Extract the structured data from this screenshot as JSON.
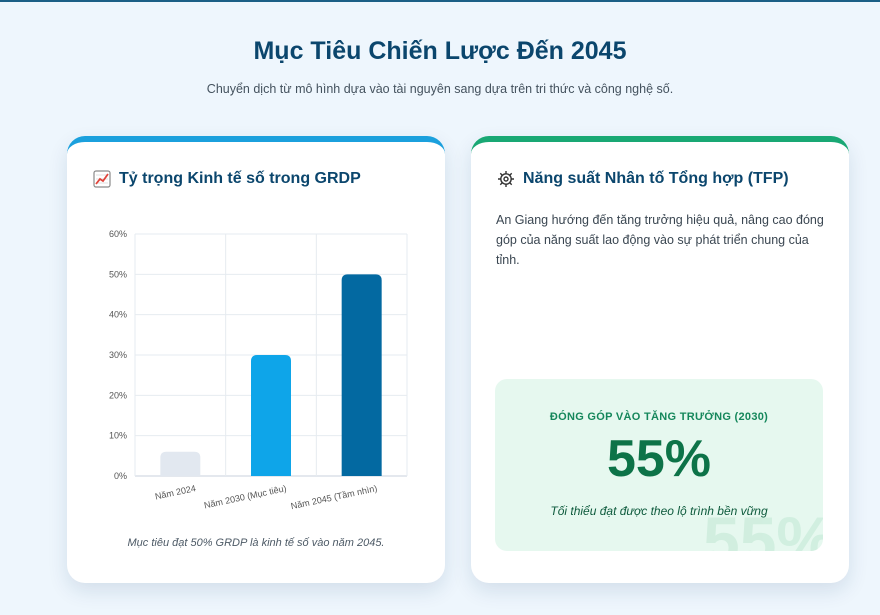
{
  "header": {
    "title": "Mục Tiêu Chiến Lược Đến 2045",
    "subtitle": "Chuyển dịch từ mô hình dựa vào tài nguyên sang dựa trên tri thức và công nghệ số."
  },
  "left_card": {
    "title": "Tỷ trọng Kinh tế số trong GRDP",
    "icon": "chart-increasing-icon",
    "accent_color": "#1ba0dd",
    "caption": "Mục tiêu đạt 50% GRDP là kinh tế số vào năm 2045."
  },
  "right_card": {
    "title": "Năng suất Nhân tố Tổng hợp (TFP)",
    "icon": "gear-icon",
    "accent_color": "#19a874",
    "description": "An Giang hướng đến tăng trưởng hiệu quả, nâng cao đóng góp của năng suất lao động vào sự phát triển chung của tỉnh.",
    "stat": {
      "label": "ĐÓNG GÓP VÀO TĂNG TRƯỞNG (2030)",
      "value": "55%",
      "note": "Tối thiểu đạt được theo lộ trình bền vững",
      "watermark": "55%"
    }
  },
  "chart_data": {
    "type": "bar",
    "categories": [
      "Năm 2024",
      "Năm 2030 (Mục tiêu)",
      "Năm 2045 (Tầm nhìn)"
    ],
    "values": [
      6,
      30,
      50
    ],
    "colors": [
      "#e2e8f0",
      "#0ea5e9",
      "#0369a1"
    ],
    "yticks": [
      "0%",
      "10%",
      "20%",
      "30%",
      "40%",
      "50%",
      "60%"
    ],
    "ylim": [
      0,
      60
    ],
    "grid": true
  }
}
